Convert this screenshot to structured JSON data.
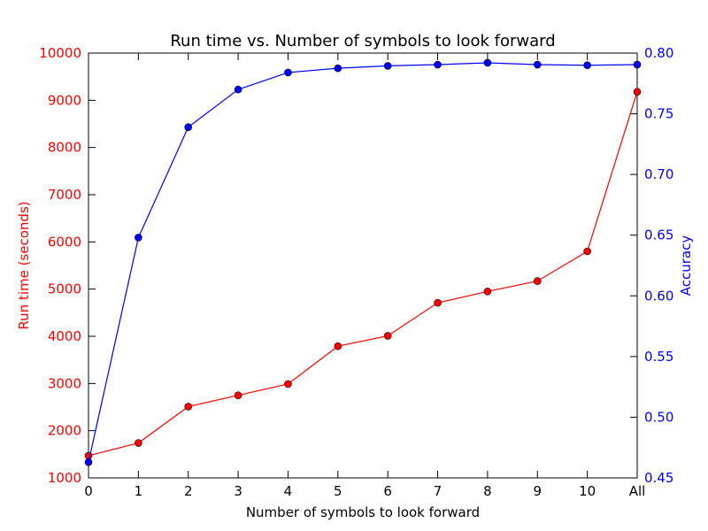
{
  "chart_data": {
    "type": "line",
    "title": "Run time vs. Number of symbols to look forward",
    "xlabel": "Number of symbols to look forward",
    "ylabel_left": "Run time (seconds)",
    "ylabel_right": "Accuracy",
    "categories": [
      "0",
      "1",
      "2",
      "3",
      "4",
      "5",
      "6",
      "7",
      "8",
      "9",
      "10",
      "All"
    ],
    "ylim_left": [
      1000,
      10000
    ],
    "ylim_right": [
      0.45,
      0.8
    ],
    "yticks_left": [
      "1000",
      "2000",
      "3000",
      "4000",
      "5000",
      "6000",
      "7000",
      "8000",
      "9000",
      "10000"
    ],
    "yticks_right": [
      "0.45",
      "0.50",
      "0.55",
      "0.60",
      "0.65",
      "0.70",
      "0.75",
      "0.80"
    ],
    "grid": false,
    "series": [
      {
        "name": "Run time (seconds)",
        "axis": "left",
        "color": "#ff0000",
        "values": [
          1470,
          1740,
          2510,
          2750,
          2990,
          3790,
          4010,
          4710,
          4950,
          5170,
          5800,
          9180
        ]
      },
      {
        "name": "Accuracy",
        "axis": "right",
        "color": "#0000ff",
        "values": [
          0.463,
          0.648,
          0.739,
          0.77,
          0.784,
          0.7875,
          0.7895,
          0.7905,
          0.792,
          0.7905,
          0.79,
          0.7905
        ]
      }
    ]
  }
}
